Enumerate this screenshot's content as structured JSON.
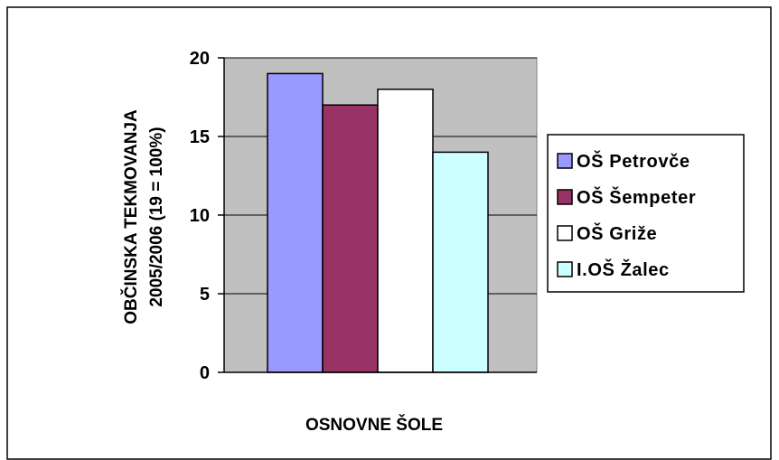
{
  "chart_data": {
    "type": "bar",
    "title": "",
    "xlabel": "OSNOVNE ŠOLE",
    "ylabel_line1": "OBČINSKA TEKMOVANJA",
    "ylabel_line2": "2005/2006    (19 = 100%)",
    "ylim": [
      0,
      20
    ],
    "yticks": [
      0,
      5,
      10,
      15,
      20
    ],
    "grid": true,
    "legend_position": "right",
    "plot_background": "#c0c0c0",
    "series": [
      {
        "name": "OŠ Petrovče",
        "value": 19,
        "color": "#9999ff"
      },
      {
        "name": "OŠ Šempeter",
        "value": 17,
        "color": "#993366"
      },
      {
        "name": "OŠ Griže",
        "value": 18,
        "color": "#ffffff"
      },
      {
        "name": "I.OŠ Žalec",
        "value": 14,
        "color": "#ccffff"
      }
    ]
  }
}
